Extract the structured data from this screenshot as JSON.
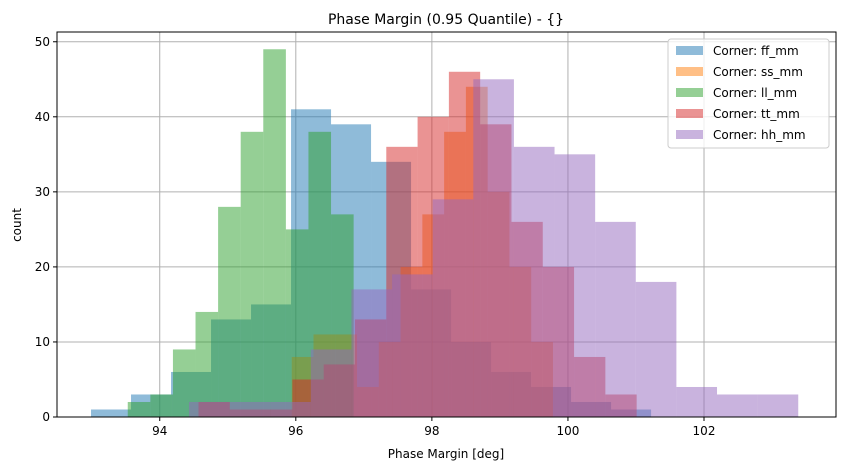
{
  "chart_data": {
    "type": "histogram",
    "title": "Phase Margin (0.95 Quantile) - {}",
    "xlabel": "Phase Margin [deg]",
    "ylabel": "count",
    "xlim": [
      92.49,
      103.94
    ],
    "ylim": [
      0,
      51.3
    ],
    "xticks": [
      94,
      96,
      98,
      100,
      102
    ],
    "yticks": [
      0,
      10,
      20,
      30,
      40,
      50
    ],
    "grid": true,
    "alpha": 0.5,
    "legend_position": "top-right",
    "series": [
      {
        "name": "Corner: ff_mm",
        "color": "#1f77b4",
        "bin_start": 92.99,
        "bin_width": 0.588,
        "counts": [
          1,
          3,
          6,
          13,
          15,
          41,
          39,
          34,
          17,
          10,
          6,
          4,
          2,
          1
        ]
      },
      {
        "name": "Corner: ss_mm",
        "color": "#ff7f0e",
        "bin_start": 95.94,
        "bin_width": 0.32,
        "counts": [
          8,
          11,
          11,
          4,
          10,
          20,
          27,
          38,
          44,
          30,
          20,
          10
        ]
      },
      {
        "name": "Corner: ll_mm",
        "color": "#2ca02c",
        "bin_start": 93.53,
        "bin_width": 0.332,
        "counts": [
          2,
          3,
          9,
          14,
          28,
          38,
          49,
          25,
          38,
          27
        ]
      },
      {
        "name": "Corner: tt_mm",
        "color": "#d62728",
        "bin_start": 94.57,
        "bin_width": 0.46,
        "counts": [
          2,
          1,
          1,
          5,
          7,
          13,
          36,
          40,
          46,
          39,
          26,
          20,
          8,
          3
        ]
      },
      {
        "name": "Corner: hh_mm",
        "color": "#9467bd",
        "bin_start": 94.43,
        "bin_width": 0.597,
        "counts": [
          2,
          2,
          2,
          9,
          17,
          19,
          29,
          45,
          36,
          35,
          26,
          18,
          4,
          3,
          3
        ]
      }
    ]
  }
}
